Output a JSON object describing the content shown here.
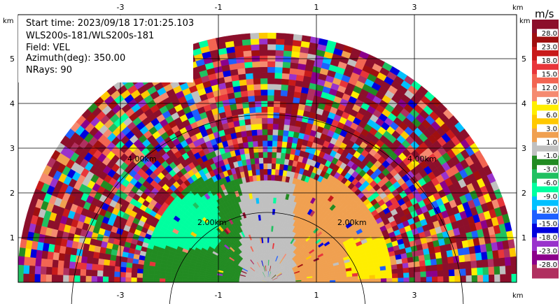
{
  "info": {
    "start_time": "Start time: 2023/09/18 17:01:25.103",
    "station": "WLS200s-181/WLS200s-181",
    "field": "Field: VEL",
    "azimuth": "Azimuth(deg): 350.00",
    "nrays": "NRays: 90"
  },
  "axes": {
    "x_ticks": [
      "-3",
      "-1",
      "1",
      "3"
    ],
    "y_ticks": [
      "1",
      "2",
      "3",
      "4",
      "5"
    ],
    "unit_label": "km",
    "range_rings": [
      "2.00km",
      "2.00km",
      "4.00km",
      "4.00km"
    ]
  },
  "colorbar": {
    "unit": "m/s",
    "labels": [
      "28.0",
      "23.0",
      "18.0",
      "15.0",
      "12.0",
      "9.0",
      "6.0",
      "3.0",
      "1.0",
      "-1.0",
      "-3.0",
      "-6.0",
      "-9.0",
      "-12.0",
      "-15.0",
      "-18.0",
      "-23.0",
      "-28.0"
    ],
    "colors": [
      "#8c0f2b",
      "#a01010",
      "#c81a1a",
      "#e8353a",
      "#f26552",
      "#f58a70",
      "#ffee00",
      "#ffc800",
      "#f0a050",
      "#c0c0c0",
      "#228b22",
      "#20c060",
      "#00ff9f",
      "#00c0ff",
      "#1e60ff",
      "#0000dd",
      "#9932cc",
      "#8b008b",
      "#b03060"
    ]
  }
}
